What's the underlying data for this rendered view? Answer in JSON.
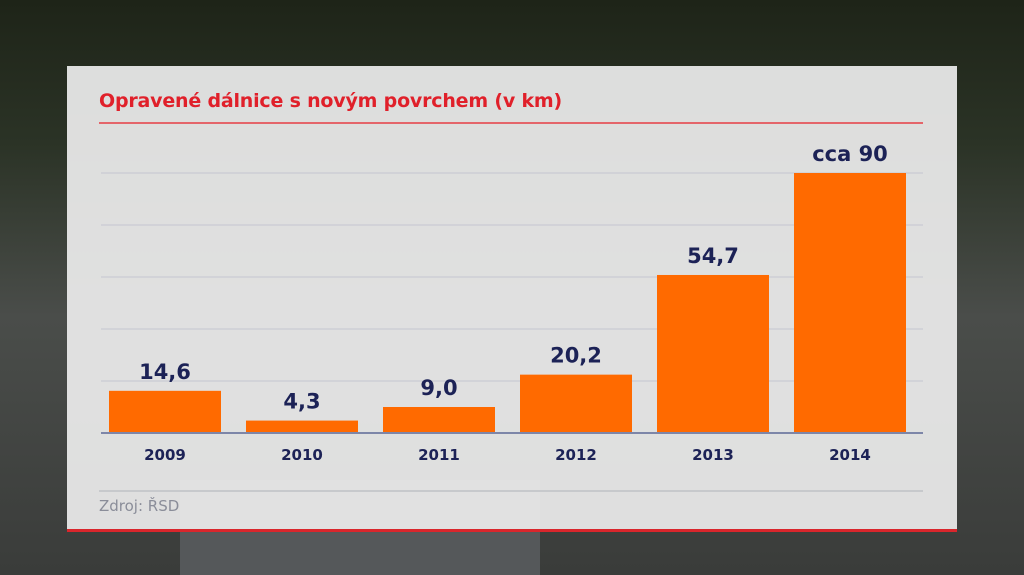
{
  "chart_data": {
    "type": "bar",
    "title": "Opravené dálnice s novým povrchem (v km)",
    "categories": [
      "2009",
      "2010",
      "2011",
      "2012",
      "2013",
      "2014"
    ],
    "values": [
      14.6,
      4.3,
      9.0,
      20.2,
      54.7,
      90
    ],
    "data_labels": [
      "14,6",
      "4,3",
      "9,0",
      "20,2",
      "54,7",
      "cca 90"
    ],
    "ylim": [
      0,
      90
    ],
    "grid": true,
    "bar_color": "#ff6a00",
    "label_color": "#1c2256",
    "title_color": "#e0202a",
    "source": "Zdroj: ŘSD"
  }
}
